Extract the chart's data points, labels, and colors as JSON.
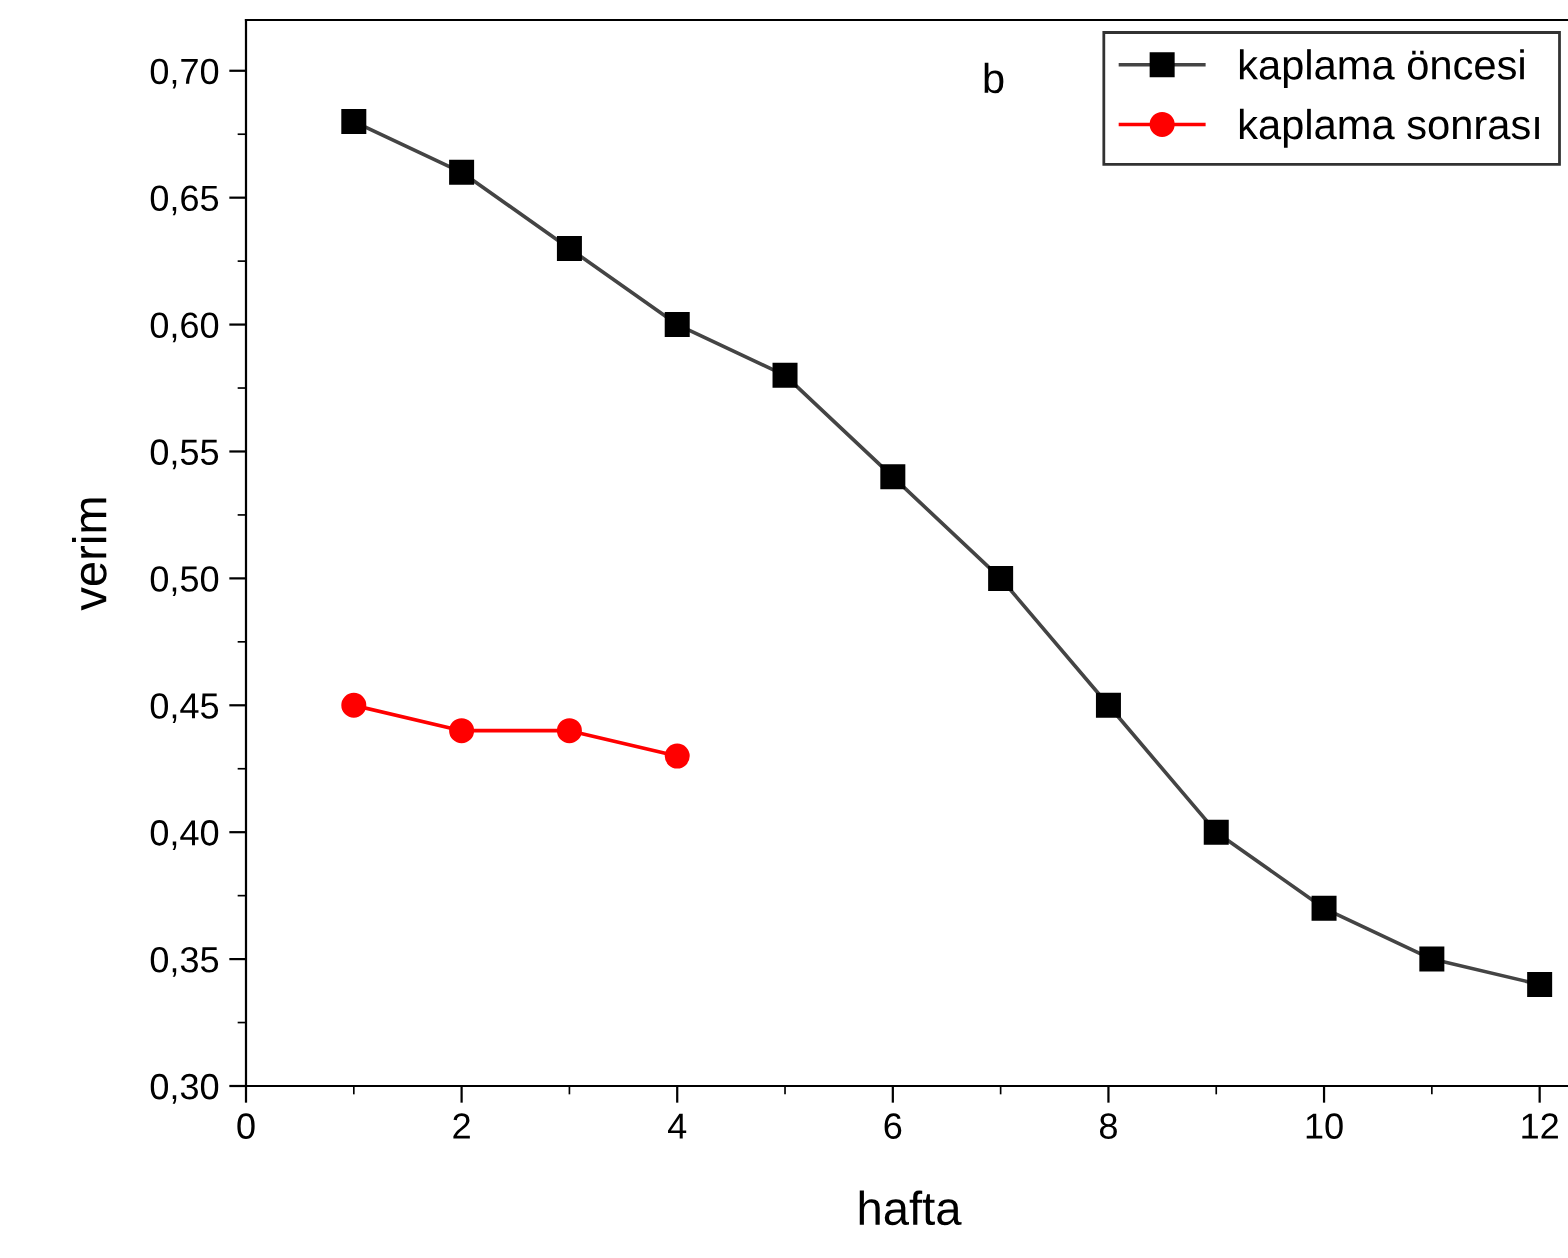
{
  "chart_data": {
    "type": "line",
    "xlabel": "hafta",
    "ylabel": "verim",
    "annotations": [
      "b"
    ],
    "xlim": [
      0,
      12.3
    ],
    "xticks": [
      0,
      2,
      4,
      6,
      8,
      10,
      12
    ],
    "ylim": [
      0.3,
      0.72
    ],
    "yticks": [
      {
        "value": 0.3,
        "label": "0,30"
      },
      {
        "value": 0.35,
        "label": "0,35"
      },
      {
        "value": 0.4,
        "label": "0,40"
      },
      {
        "value": 0.45,
        "label": "0,45"
      },
      {
        "value": 0.5,
        "label": "0,50"
      },
      {
        "value": 0.55,
        "label": "0,55"
      },
      {
        "value": 0.6,
        "label": "0,60"
      },
      {
        "value": 0.65,
        "label": "0,65"
      },
      {
        "value": 0.7,
        "label": "0,70"
      }
    ],
    "grid": false,
    "legend": "top right",
    "series": [
      {
        "name": "kaplama öncesi",
        "color": "#000000",
        "marker": "square",
        "x": [
          1,
          2,
          3,
          4,
          5,
          6,
          7,
          8,
          9,
          10,
          11,
          12
        ],
        "values": [
          0.68,
          0.66,
          0.63,
          0.6,
          0.58,
          0.54,
          0.5,
          0.45,
          0.4,
          0.37,
          0.35,
          0.34
        ]
      },
      {
        "name": "kaplama sonrası",
        "color": "#ff0000",
        "marker": "circle",
        "x": [
          1,
          2,
          3,
          4
        ],
        "values": [
          0.45,
          0.44,
          0.44,
          0.43
        ]
      }
    ]
  }
}
